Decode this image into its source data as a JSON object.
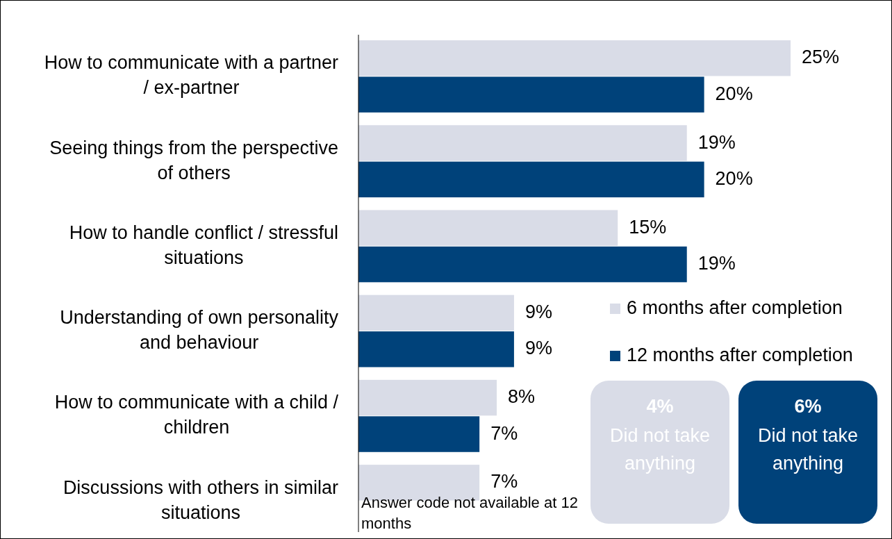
{
  "chart_data": {
    "type": "bar",
    "orientation": "horizontal",
    "categories": [
      "How to communicate with a partner / ex-partner",
      "Seeing things from the perspective of others",
      "How to handle conflict / stressful situations",
      "Understanding of own personality and behaviour",
      "How to communicate with a child / children",
      "Discussions with others in similar situations"
    ],
    "series": [
      {
        "name": "6 months after completion",
        "color": "#d9dce7",
        "values": [
          25,
          19,
          15,
          9,
          8,
          7
        ],
        "value_labels": [
          "25%",
          "19%",
          "15%",
          "9%",
          "8%",
          "7%"
        ]
      },
      {
        "name": "12 months after completion",
        "color": "#00427a",
        "values": [
          20,
          20,
          19,
          9,
          7,
          null
        ],
        "value_labels": [
          "20%",
          "20%",
          "19%",
          "9%",
          "7%",
          null
        ]
      }
    ],
    "legend": "right",
    "annotations": [
      "Answer code not available at 12 months",
      "4% Did not take anything",
      "6% Did not take anything"
    ]
  }
}
